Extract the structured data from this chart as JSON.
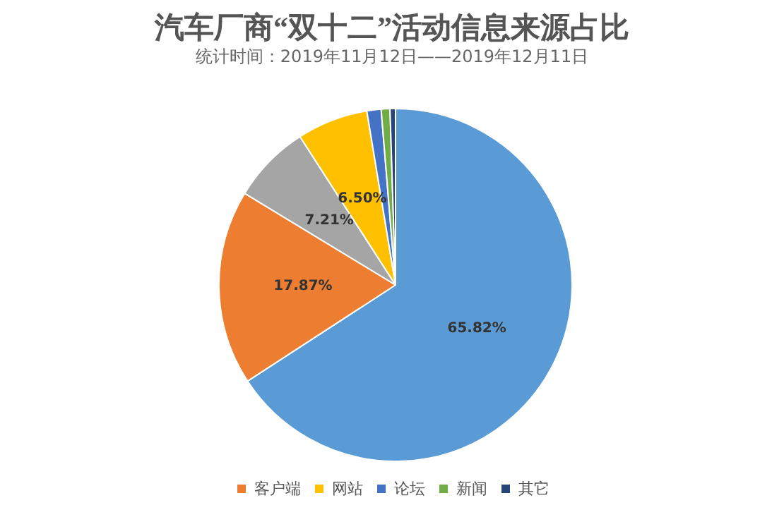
{
  "chart_data": {
    "type": "pie",
    "title": "汽车厂商“双十二”活动信息来源占比",
    "subtitle": "统计时间：2019年11月12日——2019年12月11日",
    "categories": [
      null,
      "客户端",
      null,
      "网站",
      "论坛",
      "新闻",
      "其它"
    ],
    "values": [
      65.82,
      17.87,
      7.21,
      6.5,
      1.3,
      0.8,
      0.5
    ],
    "colors": [
      "#5b9bd5",
      "#ed7d31",
      "#a5a5a5",
      "#ffc000",
      "#4472c4",
      "#70ad47",
      "#264478"
    ],
    "value_labels": [
      "65.82%",
      "17.87%",
      "7.21%",
      "6.50%",
      null,
      null,
      null
    ],
    "legend": "bottom"
  }
}
